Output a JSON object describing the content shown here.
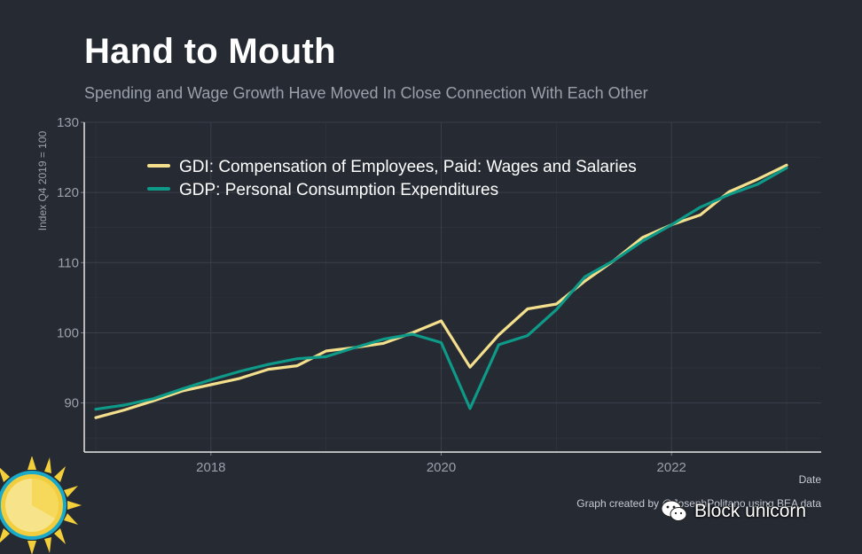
{
  "title": "Hand to Mouth",
  "subtitle": "Spending and Wage Growth Have Moved In Close Connection With Each Other",
  "credit": "Graph created by @JosephPolitano using BEA data",
  "watermark": "Block unicorn",
  "colors": {
    "background": "#262a33",
    "grid": "#3a3f49",
    "axis": "#e8e8e8",
    "wages": "#f3df8c",
    "consumption": "#0e9a88"
  },
  "chart_data": {
    "type": "line",
    "title": "Hand to Mouth",
    "subtitle": "Spending and Wage Growth Have Moved In Close Connection With Each Other",
    "xlabel": "Date",
    "ylabel": "Index Q4 2019 = 100",
    "xlim": [
      2016.9,
      2023.3
    ],
    "ylim": [
      83,
      130
    ],
    "xticks": [
      2018,
      2020,
      2022
    ],
    "xtick_labels": [
      "2018",
      "2020",
      "2022"
    ],
    "yticks": [
      90,
      100,
      110,
      120,
      130
    ],
    "ytick_labels": [
      "90",
      "100",
      "110",
      "120",
      "130"
    ],
    "legend_position": "top-left",
    "x": [
      2017.0,
      2017.25,
      2017.5,
      2017.75,
      2018.0,
      2018.25,
      2018.5,
      2018.75,
      2019.0,
      2019.25,
      2019.5,
      2019.75,
      2020.0,
      2020.25,
      2020.5,
      2020.75,
      2021.0,
      2021.25,
      2021.5,
      2021.75,
      2022.0,
      2022.25,
      2022.5,
      2022.75,
      2023.0
    ],
    "series": [
      {
        "name": "GDI: Compensation of Employees, Paid: Wages and Salaries",
        "color": "#f3df8c",
        "values": [
          87.9,
          89.0,
          90.3,
          91.7,
          92.6,
          93.5,
          94.8,
          95.3,
          97.4,
          97.9,
          98.5,
          100.0,
          101.7,
          95.1,
          99.7,
          103.4,
          104.1,
          107.4,
          110.3,
          113.6,
          115.4,
          116.8,
          120.1,
          121.9,
          123.9
        ]
      },
      {
        "name": "GDP: Personal Consumption Expenditures",
        "color": "#0e9a88",
        "values": [
          89.1,
          89.7,
          90.6,
          92.0,
          93.3,
          94.5,
          95.5,
          96.3,
          96.6,
          97.9,
          99.1,
          99.8,
          98.6,
          89.2,
          98.3,
          99.6,
          103.3,
          108.0,
          110.3,
          113.1,
          115.4,
          117.9,
          119.7,
          121.2,
          123.5
        ]
      }
    ]
  }
}
